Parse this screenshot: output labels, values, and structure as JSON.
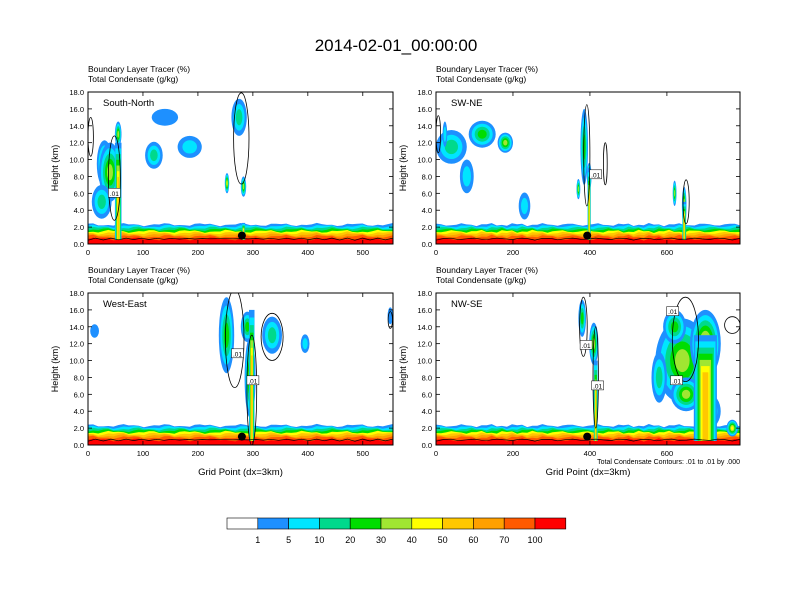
{
  "figure": {
    "title": "2014-02-01_00:00:00",
    "x_axis_label": "Grid Point (dx=3km)",
    "footnote": "Total Condensate Contours: .01 to .01 by .000"
  },
  "colorbar": {
    "colors": [
      "#ffffff",
      "#1e90ff",
      "#00e5ff",
      "#00d98c",
      "#00dd00",
      "#a0e632",
      "#ffff00",
      "#ffc800",
      "#ffa000",
      "#ff5a00",
      "#ff0000"
    ],
    "labels": [
      "1",
      "5",
      "10",
      "20",
      "30",
      "40",
      "50",
      "60",
      "70",
      "100"
    ]
  },
  "chart_data": [
    {
      "type": "contour",
      "cross_section": "South-North",
      "header_line1": "Boundary Layer Tracer   (%)",
      "header_line2": "Total Condensate   (g/kg)",
      "ylabel": "Height (km)",
      "xlim": [
        0,
        555
      ],
      "ylim": [
        0,
        18
      ],
      "xticks": [
        "0",
        "100",
        "200",
        "300",
        "400",
        "500"
      ],
      "yticks": [
        "0.0",
        "2.0",
        "4.0",
        "6.0",
        "8.0",
        "10.0",
        "12.0",
        "14.0",
        "16.0",
        "18.0"
      ],
      "show_xlabel": false,
      "marker": {
        "x": 280,
        "y": 1.0
      },
      "contour_labels": [
        {
          "x": 48,
          "y": 6.0,
          "text": ".01"
        }
      ]
    },
    {
      "type": "contour",
      "cross_section": "SW-NE",
      "header_line1": "Boundary Layer Tracer   (%)",
      "header_line2": "Total Condensate   (g/kg)",
      "ylabel": "Height (km)",
      "xlim": [
        0,
        790
      ],
      "ylim": [
        0,
        18
      ],
      "xticks": [
        "0",
        "200",
        "400",
        "600"
      ],
      "yticks": [
        "0.0",
        "2.0",
        "4.0",
        "6.0",
        "8.0",
        "10.0",
        "12.0",
        "14.0",
        "16.0",
        "18.0"
      ],
      "show_xlabel": false,
      "marker": {
        "x": 393,
        "y": 1.0
      },
      "contour_labels": [
        {
          "x": 415,
          "y": 8.2,
          "text": ".01"
        }
      ]
    },
    {
      "type": "contour",
      "cross_section": "West-East",
      "header_line1": "Boundary Layer Tracer   (%)",
      "header_line2": "Total Condensate   (g/kg)",
      "ylabel": "Height (km)",
      "xlim": [
        0,
        555
      ],
      "ylim": [
        0,
        18
      ],
      "xticks": [
        "0",
        "100",
        "200",
        "300",
        "400",
        "500"
      ],
      "yticks": [
        "0.0",
        "2.0",
        "4.0",
        "6.0",
        "8.0",
        "10.0",
        "12.0",
        "14.0",
        "16.0",
        "18.0"
      ],
      "show_xlabel": true,
      "marker": {
        "x": 280,
        "y": 1.0
      },
      "contour_labels": [
        {
          "x": 272,
          "y": 10.8,
          "text": ".01"
        },
        {
          "x": 300,
          "y": 7.6,
          "text": ".01"
        }
      ]
    },
    {
      "type": "contour",
      "cross_section": "NW-SE",
      "header_line1": "Boundary Layer Tracer   (%)",
      "header_line2": "Total Condensate   (g/kg)",
      "ylabel": "Height (km)",
      "xlim": [
        0,
        790
      ],
      "ylim": [
        0,
        18
      ],
      "xticks": [
        "0",
        "200",
        "400",
        "600"
      ],
      "yticks": [
        "0.0",
        "2.0",
        "4.0",
        "6.0",
        "8.0",
        "10.0",
        "12.0",
        "14.0",
        "16.0",
        "18.0"
      ],
      "show_xlabel": true,
      "marker": {
        "x": 393,
        "y": 1.0
      },
      "contour_labels": [
        {
          "x": 390,
          "y": 11.8,
          "text": ".01"
        },
        {
          "x": 420,
          "y": 7.0,
          "text": ".01"
        },
        {
          "x": 625,
          "y": 7.6,
          "text": ".01"
        },
        {
          "x": 615,
          "y": 15.8,
          "text": ".01"
        }
      ]
    }
  ]
}
